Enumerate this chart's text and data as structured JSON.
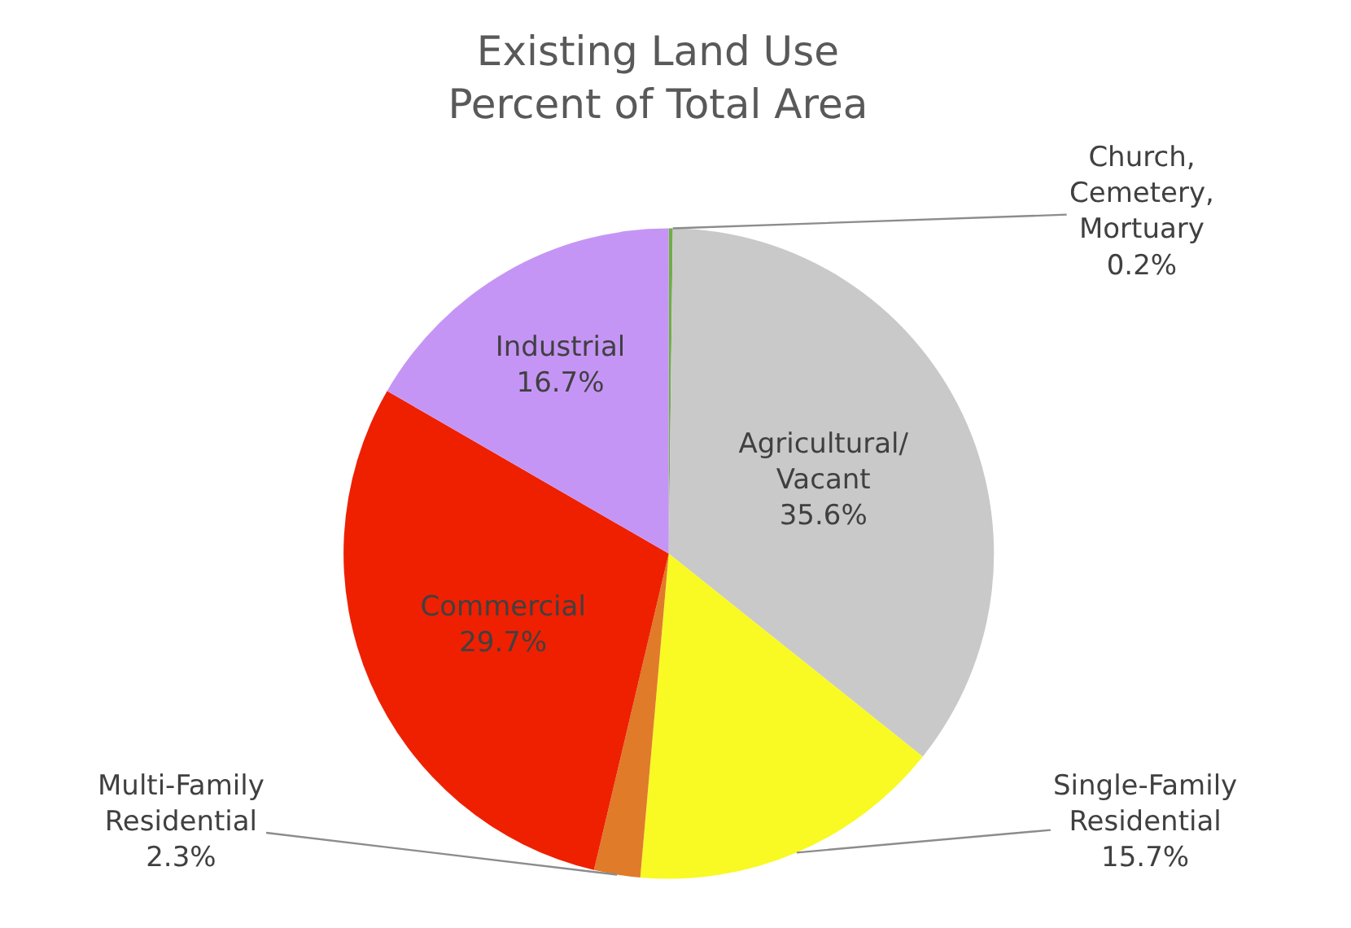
{
  "chart_data": {
    "type": "pie",
    "title": "Existing Land Use\nPercent of Total Area",
    "categories": [
      "Church, Cemetery, Mortuary",
      "Agricultural/ Vacant",
      "Single-Family Residential",
      "Multi-Family Residential",
      "Commercial",
      "Industrial"
    ],
    "values": [
      0.2,
      35.6,
      15.7,
      2.3,
      29.7,
      16.7
    ],
    "value_labels": [
      "0.2%",
      "35.6%",
      "15.7%",
      "2.3%",
      "29.7%",
      "16.7%"
    ],
    "colors": [
      "#70ad47",
      "#c9c9c9",
      "#f9f924",
      "#e07b2a",
      "#ee2000",
      "#c595f5"
    ],
    "legend": false
  }
}
